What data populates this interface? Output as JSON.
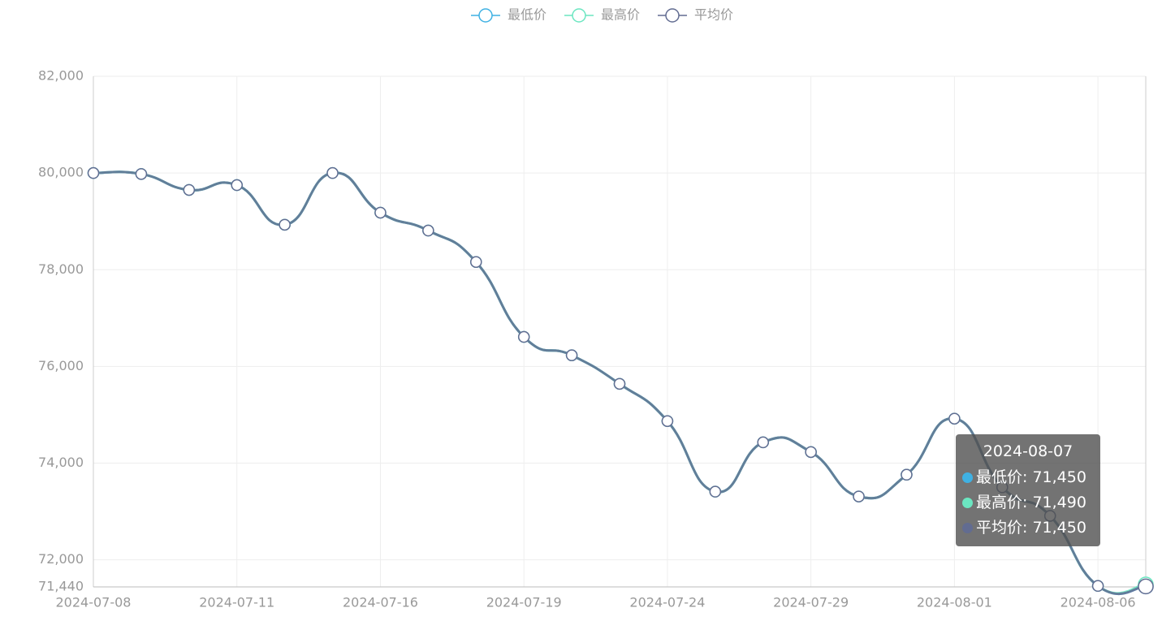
{
  "chart_data": {
    "type": "line",
    "categories": [
      "2024-07-08",
      null,
      null,
      "2024-07-11",
      null,
      null,
      "2024-07-16",
      null,
      null,
      "2024-07-19",
      null,
      null,
      "2024-07-24",
      null,
      null,
      "2024-07-29",
      null,
      null,
      "2024-08-01",
      null,
      null,
      "2024-08-06",
      "2024-08-07"
    ],
    "series": [
      {
        "name": "最低价",
        "color": "#3fb1e3",
        "values": [
          80000,
          79980,
          79650,
          79750,
          78930,
          80000,
          79180,
          78810,
          78160,
          76610,
          76230,
          75640,
          74870,
          73410,
          74430,
          74230,
          73310,
          73760,
          74920,
          73500,
          72910,
          71460,
          71450
        ]
      },
      {
        "name": "最高价",
        "color": "#6be6c1",
        "values": [
          80000,
          79980,
          79650,
          79750,
          78930,
          80000,
          79180,
          78810,
          78160,
          76610,
          76230,
          75640,
          74870,
          73410,
          74430,
          74230,
          73310,
          73760,
          74920,
          73500,
          72910,
          71460,
          71490
        ]
      },
      {
        "name": "平均价",
        "color": "#626c91",
        "values": [
          80000,
          79980,
          79650,
          79750,
          78930,
          80000,
          79180,
          78810,
          78160,
          76610,
          76230,
          75640,
          74870,
          73410,
          74430,
          74230,
          73310,
          73760,
          74920,
          73500,
          72910,
          71460,
          71450
        ]
      }
    ],
    "ylim": [
      71440,
      82000
    ],
    "yticks": [
      {
        "value": 71440,
        "label": "71,440"
      },
      {
        "value": 72000,
        "label": "72,000"
      },
      {
        "value": 74000,
        "label": "74,000"
      },
      {
        "value": 76000,
        "label": "76,000"
      },
      {
        "value": 78000,
        "label": "78,000"
      },
      {
        "value": 80000,
        "label": "80,000"
      },
      {
        "value": 82000,
        "label": "82,000"
      }
    ],
    "grid": true,
    "legend": "top",
    "tooltip": {
      "category": "2024-08-07",
      "value_labels": [
        "71,450",
        "71,490",
        "71,450"
      ]
    }
  }
}
